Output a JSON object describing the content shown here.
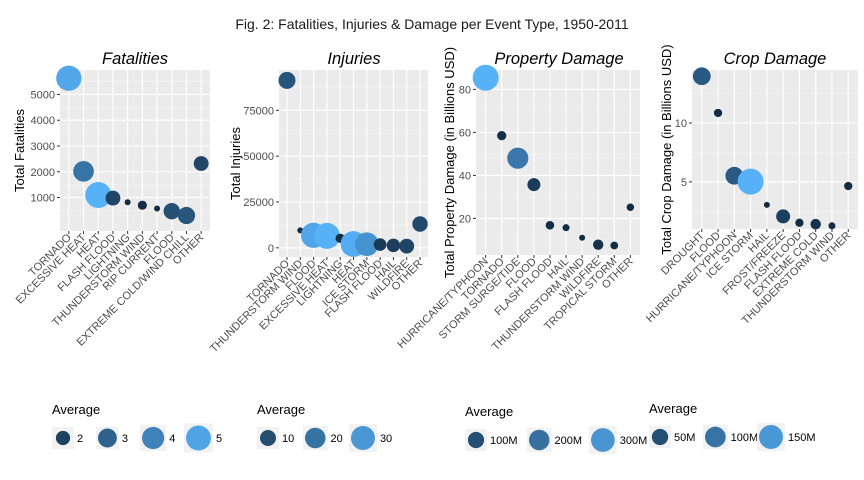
{
  "figure_title": "Fig. 2: Fatalities, Injuries & Damage per Event Type, 1950-2011",
  "colors": {
    "panel_bg": "#ebebeb",
    "grid_major": "#ffffff",
    "grid_minor": "#f5f5f5",
    "tick_text": "#4d4d4d",
    "point_low": "#132b43",
    "point_high": "#56b1f7"
  },
  "chart_data": [
    {
      "type": "scatter",
      "title": "Fatalities",
      "ylabel": "Total Fatalities",
      "ylim": [
        -300,
        5950
      ],
      "yticks": [
        1000,
        2000,
        3000,
        4000,
        5000
      ],
      "categories": [
        "TORNADO",
        "EXCESSIVE HEAT",
        "HEAT",
        "FLASH FLOOD",
        "LIGHTNING",
        "THUNDERSTORM WIND",
        "RIP CURRENT",
        "FLOOD",
        "EXTREME COLD/WIND CHILL",
        "OTHER"
      ],
      "values": [
        5630,
        2018,
        1096,
        978,
        816,
        701,
        572,
        470,
        300,
        2320
      ],
      "averages": [
        5.1,
        3.5,
        5.4,
        2.1,
        1.3,
        1.4,
        1.3,
        2.4,
        2.6,
        2.1
      ],
      "legend": {
        "title": "Average",
        "labels": [
          "2",
          "3",
          "4",
          "5"
        ],
        "values": [
          2,
          3,
          4,
          5
        ],
        "min": 1.3,
        "max": 5.4
      }
    },
    {
      "type": "scatter",
      "title": "Injuries",
      "ylabel": "Total Injuries",
      "ylim": [
        -5000,
        97000
      ],
      "yticks": [
        0,
        25000,
        50000,
        75000
      ],
      "categories": [
        "TORNADO",
        "THUNDERSTORM WIND",
        "FLOOD",
        "EXCESSIVE HEAT",
        "LIGHTNING",
        "HEAT",
        "ICE STORM",
        "FLASH FLOOD",
        "HAIL",
        "WILDFIRE",
        "OTHER"
      ],
      "values": [
        91350,
        9500,
        6800,
        6500,
        5230,
        2100,
        1975,
        1780,
        1360,
        910,
        13000
      ],
      "averages": [
        12,
        1,
        34,
        37,
        2,
        36,
        29,
        5,
        6,
        8,
        9
      ],
      "legend": {
        "title": "Average",
        "labels": [
          "10",
          "20",
          "30"
        ],
        "values": [
          10,
          20,
          30
        ],
        "min": 1,
        "max": 37
      }
    },
    {
      "type": "scatter",
      "title": "Property Damage",
      "ylabel": "Total Property Damage (in Billions USD)",
      "ylim": [
        3,
        89
      ],
      "yticks": [
        20,
        40,
        60,
        80
      ],
      "categories": [
        "HURRICANE/TYPHOON",
        "TORNADO",
        "STORM SURGE/TIDE",
        "FLOOD",
        "FLASH FLOOD",
        "HAIL",
        "THUNDERSTORM WIND",
        "WILDFIRE",
        "TROPICAL STORM",
        "OTHER"
      ],
      "values": [
        85.4,
        58.5,
        48.0,
        35.7,
        16.8,
        15.7,
        11.0,
        7.8,
        7.4,
        25.2
      ],
      "averages": [
        380,
        12,
        220,
        48,
        8,
        3,
        2,
        20,
        5,
        4
      ],
      "legend": {
        "title": "Average",
        "labels": [
          "100M",
          "200M",
          "300M"
        ],
        "values": [
          100,
          200,
          300
        ],
        "min": 2,
        "max": 380
      }
    },
    {
      "type": "scatter",
      "title": "Crop Damage",
      "ylabel": "Total Crop Damage (in Billions USD)",
      "ylim": [
        1.0,
        14.5
      ],
      "yticks": [
        5,
        10
      ],
      "categories": [
        "DROUGHT",
        "FLOOD",
        "HURRICANE/TYPHOON",
        "ICE STORM",
        "HAIL",
        "FROST/FREEZE",
        "FLASH FLOOD",
        "EXTREME COLD",
        "THUNDERSTORM WIND",
        "OTHER"
      ],
      "values": [
        13.97,
        10.85,
        5.52,
        5.02,
        3.05,
        2.07,
        1.53,
        1.41,
        1.27,
        4.65
      ],
      "averages": [
        65,
        3,
        65,
        185,
        0.5,
        30,
        3,
        10,
        1,
        3
      ],
      "legend": {
        "title": "Average",
        "labels": [
          "50M",
          "100M",
          "150M"
        ],
        "values": [
          50,
          100,
          150
        ],
        "min": 0.5,
        "max": 185
      }
    }
  ]
}
